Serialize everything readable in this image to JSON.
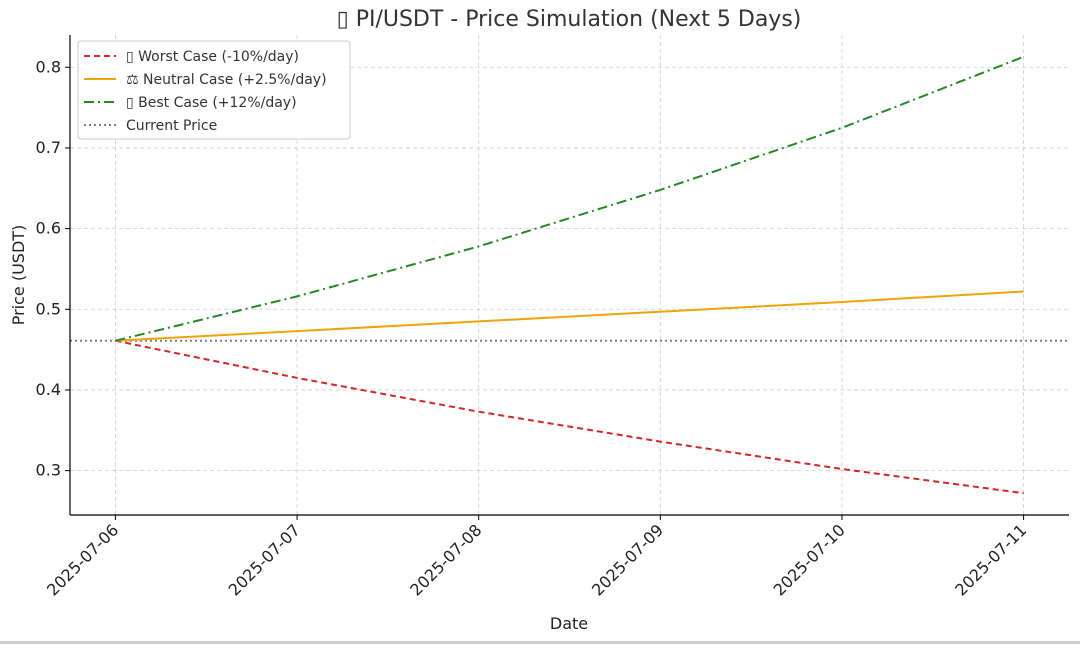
{
  "chart_data": {
    "type": "line",
    "title": "▯ PI/USDT - Price Simulation (Next 5 Days)",
    "xlabel": "Date",
    "ylabel": "Price (USDT)",
    "x": [
      "2025-07-06",
      "2025-07-07",
      "2025-07-08",
      "2025-07-09",
      "2025-07-10",
      "2025-07-11"
    ],
    "xlim": [
      "2025-07-05T18:00",
      "2025-07-11T06:00"
    ],
    "ylim": [
      0.245,
      0.84
    ],
    "yticks": [
      0.3,
      0.4,
      0.5,
      0.6,
      0.7,
      0.8
    ],
    "grid": true,
    "legend": "top-left",
    "series": [
      {
        "name": "▯ Worst Case (-10%/day)",
        "values": [
          0.461,
          0.415,
          0.373,
          0.336,
          0.302,
          0.272
        ],
        "color": "#d62728",
        "dash": "dashed"
      },
      {
        "name": "⚖ Neutral Case (+2.5%/day)",
        "values": [
          0.461,
          0.473,
          0.485,
          0.497,
          0.509,
          0.522
        ],
        "color": "#f0a30a",
        "dash": "solid"
      },
      {
        "name": "▯ Best Case (+12%/day)",
        "values": [
          0.461,
          0.516,
          0.578,
          0.648,
          0.725,
          0.813
        ],
        "color": "#228b22",
        "dash": "dashdot"
      }
    ],
    "reference_line": {
      "name": "Current Price",
      "value": 0.461,
      "color": "#7f7f7f",
      "dash": "dotted"
    }
  }
}
